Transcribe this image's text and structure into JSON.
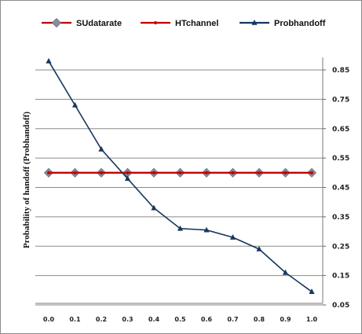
{
  "chart_data": {
    "type": "line",
    "x": [
      0.0,
      0.1,
      0.2,
      0.3,
      0.4,
      0.5,
      0.6,
      0.7,
      0.8,
      0.9,
      1.0
    ],
    "x_tick_labels": [
      "0.0",
      "0.1",
      "0.2",
      "0.3",
      "0.4",
      "0.5",
      "0.6",
      "0.7",
      "0.8",
      "0.9",
      "1.0"
    ],
    "series": [
      {
        "name": "SUdatarate",
        "marker": "diamond",
        "line_color": "#c00000",
        "marker_color": "#8c8c9c",
        "values": [
          0.5,
          0.5,
          0.5,
          0.5,
          0.5,
          0.5,
          0.5,
          0.5,
          0.5,
          0.5,
          0.5
        ]
      },
      {
        "name": "HTchannel",
        "marker": "dot",
        "line_color": "#c00000",
        "marker_color": "#c00000",
        "values": [
          0.5,
          0.5,
          0.5,
          0.5,
          0.5,
          0.5,
          0.5,
          0.5,
          0.5,
          0.5,
          0.5
        ]
      },
      {
        "name": "Probhandoff",
        "marker": "triangle",
        "line_color": "#17375e",
        "marker_color": "#17375e",
        "values": [
          0.88,
          0.73,
          0.58,
          0.48,
          0.38,
          0.31,
          0.305,
          0.28,
          0.24,
          0.16,
          0.095
        ]
      }
    ],
    "ylabel": "Probability of handoff (Probhandoff)",
    "ylim": [
      0.05,
      0.85
    ],
    "y_ticks": [
      0.05,
      0.15,
      0.25,
      0.35,
      0.45,
      0.55,
      0.65,
      0.75,
      0.85
    ],
    "y_tick_labels": [
      "0.05",
      "0.15",
      "0.25",
      "0.35",
      "0.45",
      "0.55",
      "0.65",
      "0.75",
      "0.85"
    ],
    "y_axis_side": "right",
    "grid": "horizontal",
    "legend_position": "top"
  }
}
